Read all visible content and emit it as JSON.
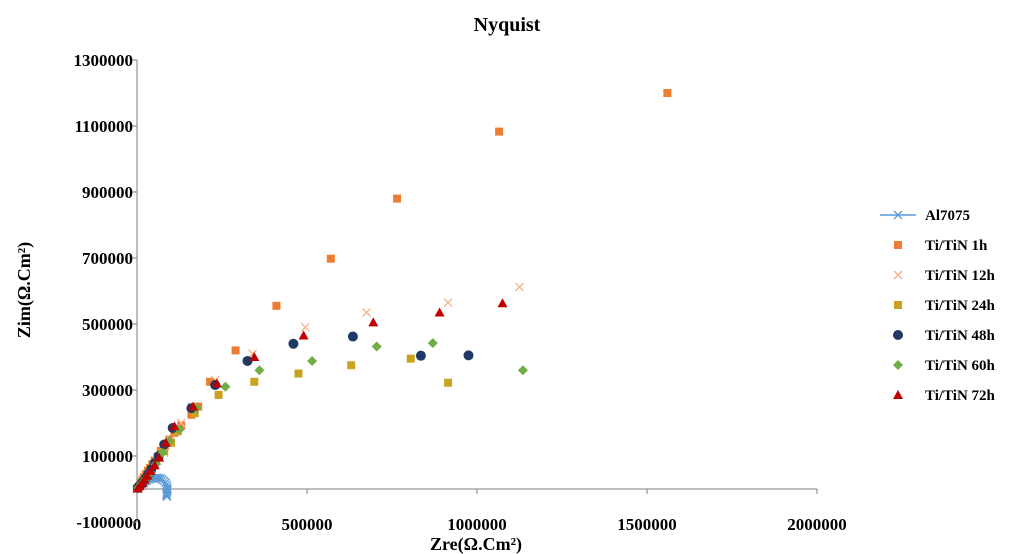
{
  "chart_data": {
    "type": "scatter",
    "title": "Nyquist",
    "xlabel": "Zre(Ω.Cm²)",
    "ylabel": "Zim(Ω.Cm²)",
    "xlim": [
      0,
      2000000
    ],
    "ylim": [
      -100000,
      1300000
    ],
    "xticks": [
      0,
      500000,
      1000000,
      1500000,
      2000000
    ],
    "yticks": [
      -100000,
      100000,
      300000,
      500000,
      700000,
      900000,
      1100000,
      1300000
    ],
    "legend_position": "right",
    "series": [
      {
        "name": "Al7075",
        "color": "#5b9bd5",
        "marker": "x-line",
        "points": [
          [
            0,
            0
          ],
          [
            5000,
            5000
          ],
          [
            10000,
            10000
          ],
          [
            15000,
            15000
          ],
          [
            20000,
            19000
          ],
          [
            25000,
            23000
          ],
          [
            30000,
            26000
          ],
          [
            35000,
            29000
          ],
          [
            40000,
            31000
          ],
          [
            45000,
            32000
          ],
          [
            50000,
            33000
          ],
          [
            55000,
            34000
          ],
          [
            60000,
            34000
          ],
          [
            65000,
            33000
          ],
          [
            70000,
            31000
          ],
          [
            75000,
            28000
          ],
          [
            80000,
            24000
          ],
          [
            84000,
            19000
          ],
          [
            87000,
            13000
          ],
          [
            89000,
            6000
          ],
          [
            90000,
            0
          ],
          [
            89000,
            -5000
          ],
          [
            88000,
            -10000
          ],
          [
            87000,
            -15000
          ],
          [
            87000,
            -20000
          ],
          [
            88000,
            -23000
          ]
        ]
      },
      {
        "name": "Ti/TiN 1h",
        "color": "#ed7d31",
        "marker": "square",
        "points": [
          [
            2000,
            2000
          ],
          [
            5000,
            6000
          ],
          [
            8000,
            12000
          ],
          [
            12000,
            20000
          ],
          [
            16000,
            28000
          ],
          [
            21000,
            36000
          ],
          [
            26000,
            45000
          ],
          [
            32000,
            55000
          ],
          [
            38000,
            64000
          ],
          [
            45000,
            75000
          ],
          [
            52000,
            86000
          ],
          [
            60000,
            98000
          ],
          [
            70000,
            115000
          ],
          [
            82000,
            130000
          ],
          [
            95000,
            150000
          ],
          [
            110000,
            170000
          ],
          [
            130000,
            192000
          ],
          [
            160000,
            225000
          ],
          [
            180000,
            250000
          ],
          [
            215000,
            325000
          ],
          [
            290000,
            420000
          ],
          [
            410000,
            555000
          ],
          [
            570000,
            698000
          ],
          [
            765000,
            880000
          ],
          [
            1065000,
            1083000
          ],
          [
            1560000,
            1200000
          ]
        ]
      },
      {
        "name": "Ti/TiN 12h",
        "color": "#f4b183",
        "marker": "x",
        "points": [
          [
            3000,
            3000
          ],
          [
            10000,
            12000
          ],
          [
            20000,
            25000
          ],
          [
            30000,
            38000
          ],
          [
            45000,
            60000
          ],
          [
            60000,
            85000
          ],
          [
            80000,
            110000
          ],
          [
            100000,
            150000
          ],
          [
            130000,
            200000
          ],
          [
            160000,
            250000
          ],
          [
            230000,
            330000
          ],
          [
            340000,
            410000
          ],
          [
            495000,
            490000
          ],
          [
            675000,
            535000
          ],
          [
            915000,
            565000
          ],
          [
            1125000,
            612000
          ]
        ]
      },
      {
        "name": "Ti/TiN 24h",
        "color": "#c9a21f",
        "marker": "square",
        "points": [
          [
            2000,
            2000
          ],
          [
            8000,
            10000
          ],
          [
            15000,
            20000
          ],
          [
            22000,
            30000
          ],
          [
            30000,
            45000
          ],
          [
            40000,
            60000
          ],
          [
            50000,
            75000
          ],
          [
            65000,
            95000
          ],
          [
            80000,
            115000
          ],
          [
            100000,
            140000
          ],
          [
            120000,
            175000
          ],
          [
            170000,
            230000
          ],
          [
            240000,
            285000
          ],
          [
            345000,
            325000
          ],
          [
            475000,
            350000
          ],
          [
            630000,
            375000
          ],
          [
            805000,
            395000
          ],
          [
            915000,
            322000
          ]
        ]
      },
      {
        "name": "Ti/TiN 48h",
        "color": "#1f3864",
        "marker": "circle",
        "points": [
          [
            2000,
            3000
          ],
          [
            6000,
            8000
          ],
          [
            12000,
            15000
          ],
          [
            18000,
            22000
          ],
          [
            25000,
            32000
          ],
          [
            33000,
            45000
          ],
          [
            42000,
            60000
          ],
          [
            52000,
            78000
          ],
          [
            64000,
            100000
          ],
          [
            80000,
            135000
          ],
          [
            105000,
            185000
          ],
          [
            160000,
            245000
          ],
          [
            230000,
            315000
          ],
          [
            325000,
            388000
          ],
          [
            460000,
            440000
          ],
          [
            635000,
            462000
          ],
          [
            835000,
            404000
          ],
          [
            975000,
            405000
          ]
        ]
      },
      {
        "name": "Ti/TiN 60h",
        "color": "#70ad47",
        "marker": "diamond",
        "points": [
          [
            3000,
            3000
          ],
          [
            12000,
            15000
          ],
          [
            25000,
            30000
          ],
          [
            40000,
            50000
          ],
          [
            55000,
            75000
          ],
          [
            75000,
            110000
          ],
          [
            95000,
            145000
          ],
          [
            125000,
            180000
          ],
          [
            175000,
            245000
          ],
          [
            260000,
            310000
          ],
          [
            360000,
            360000
          ],
          [
            515000,
            388000
          ],
          [
            705000,
            432000
          ],
          [
            870000,
            442000
          ],
          [
            1135000,
            360000
          ]
        ]
      },
      {
        "name": "Ti/TiN 72h",
        "color": "#c00000",
        "marker": "triangle",
        "points": [
          [
            2000,
            2000
          ],
          [
            8000,
            9000
          ],
          [
            15000,
            18000
          ],
          [
            22000,
            28000
          ],
          [
            30000,
            40000
          ],
          [
            40000,
            55000
          ],
          [
            52000,
            72000
          ],
          [
            65000,
            95000
          ],
          [
            85000,
            140000
          ],
          [
            110000,
            190000
          ],
          [
            165000,
            250000
          ],
          [
            235000,
            320000
          ],
          [
            345000,
            400000
          ],
          [
            490000,
            465000
          ],
          [
            695000,
            505000
          ],
          [
            890000,
            535000
          ],
          [
            1075000,
            563000
          ]
        ]
      }
    ]
  }
}
